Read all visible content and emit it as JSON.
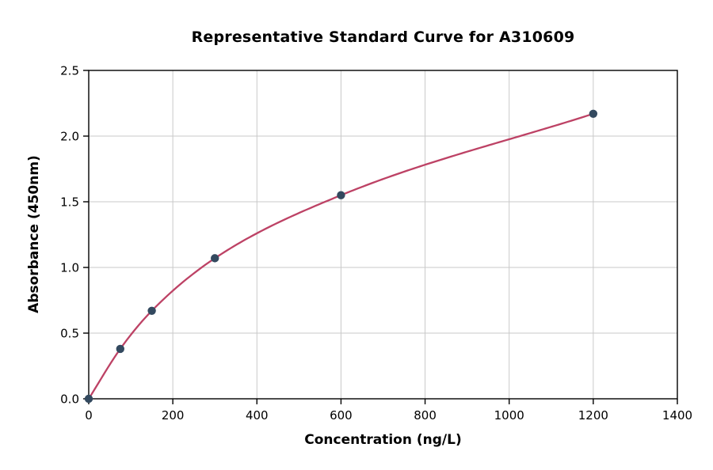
{
  "figure": {
    "background": "#ffffff"
  },
  "chart_data": {
    "type": "line",
    "title": "Representative Standard Curve for A310609",
    "xlabel": "Concentration (ng/L)",
    "ylabel": "Absorbance (450nm)",
    "points": {
      "x": [
        0,
        75,
        150,
        300,
        600,
        1200
      ],
      "y": [
        0,
        0.38,
        0.67,
        1.07,
        1.55,
        2.17
      ]
    },
    "xlim": [
      0,
      1400
    ],
    "ylim": [
      0,
      2.5
    ],
    "xticks": {
      "values": [
        0,
        200,
        400,
        600,
        800,
        1000,
        1200,
        1400
      ],
      "labels": [
        "0",
        "200",
        "400",
        "600",
        "800",
        "1000",
        "1200",
        "1400"
      ]
    },
    "yticks": {
      "values": [
        0,
        0.5,
        1.0,
        1.5,
        2.0,
        2.5
      ],
      "labels": [
        "0.0",
        "0.5",
        "1.0",
        "1.5",
        "2.0",
        "2.5"
      ]
    },
    "grid": true,
    "legend": "none",
    "colors": {
      "curve": "#bd4265",
      "marker": "#33495f",
      "grid": "#c9c9c9",
      "axis": "#000000",
      "text": "#000000"
    }
  }
}
